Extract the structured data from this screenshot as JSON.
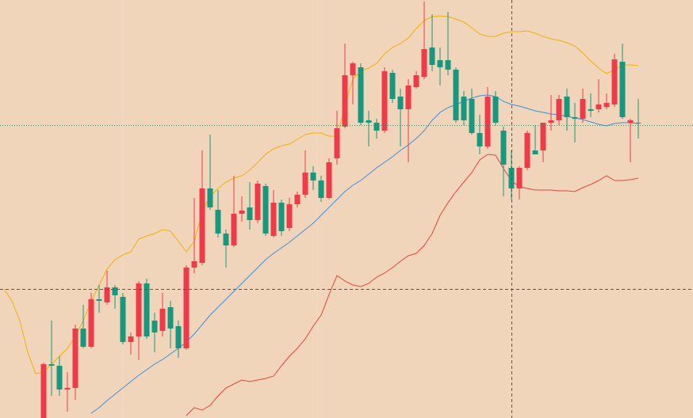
{
  "chart_data": {
    "type": "candlestick",
    "xlim": [
      -5.5,
      81.9
    ],
    "ylim": [
      0,
      528
    ],
    "x": [
      -5,
      -4,
      -3,
      -2,
      -1,
      0,
      1,
      2,
      3,
      4,
      5,
      6,
      7,
      8,
      9,
      10,
      11,
      12,
      13,
      14,
      15,
      16,
      17,
      18,
      19,
      20,
      21,
      22,
      23,
      24,
      25,
      26,
      27,
      28,
      29,
      30,
      31,
      32,
      33,
      34,
      35,
      36,
      37,
      38,
      39,
      40,
      41,
      42,
      43,
      44,
      45,
      46,
      47,
      48,
      49,
      50,
      51,
      52,
      53,
      54,
      55,
      56,
      57,
      58,
      59,
      60,
      61,
      62,
      63,
      64,
      65,
      66,
      67,
      68,
      69,
      70,
      71,
      72,
      73,
      74,
      75
    ],
    "series": [
      {
        "type": "candlestick",
        "color_up": "#ef3a4a",
        "color_down": "#17987e",
        "open": [
          null,
          null,
          null,
          null,
          null,
          0,
          68,
          66,
          36,
          38,
          113,
          90,
          150,
          146,
          165,
          153,
          96,
          103,
          170,
          123,
          110,
          140,
          116,
          88,
          190,
          196,
          290,
          263,
          233,
          218,
          258,
          266,
          250,
          293,
          230,
          272,
          240,
          270,
          282,
          310,
          300,
          278,
          328,
          368,
          433,
          443,
          376,
          373,
          363,
          436,
          406,
          390,
          418,
          431,
          468,
          452,
          452,
          440,
          406,
          403,
          360,
          343,
          406,
          363,
          316,
          290,
          316,
          338,
          338,
          373,
          376,
          406,
          380,
          378,
          390,
          390,
          393,
          396,
          450,
          373,
          373
        ],
        "close": [
          null,
          null,
          null,
          null,
          null,
          68,
          66,
          36,
          38,
          113,
          90,
          150,
          148,
          165,
          155,
          96,
          103,
          170,
          103,
          108,
          138,
          113,
          88,
          190,
          198,
          290,
          266,
          233,
          218,
          258,
          262,
          250,
          296,
          233,
          272,
          236,
          270,
          282,
          310,
          300,
          278,
          323,
          366,
          433,
          448,
          373,
          373,
          363,
          438,
          403,
          390,
          420,
          433,
          466,
          446,
          443,
          440,
          376,
          376,
          360,
          343,
          406,
          373,
          320,
          290,
          316,
          360,
          333,
          373,
          376,
          403,
          380,
          378,
          403,
          388,
          396,
          398,
          453,
          380,
          376,
          372
        ],
        "high": [
          null,
          null,
          null,
          null,
          null,
          70,
          123,
          78,
          58,
          118,
          143,
          158,
          168,
          186,
          168,
          158,
          108,
          173,
          176,
          133,
          158,
          148,
          123,
          193,
          278,
          338,
          358,
          288,
          238,
          306,
          280,
          298,
          300,
          296,
          288,
          276,
          278,
          286,
          338,
          318,
          306,
          328,
          388,
          473,
          450,
          448,
          388,
          378,
          443,
          440,
          416,
          428,
          438,
          526,
          510,
          468,
          513,
          443,
          413,
          416,
          383,
          418,
          413,
          368,
          338,
          318,
          363,
          370,
          373,
          408,
          408,
          416,
          398,
          416,
          410,
          428,
          410,
          460,
          473,
          378,
          403
        ],
        "low": [
          null,
          null,
          null,
          null,
          null,
          0,
          28,
          28,
          8,
          23,
          88,
          88,
          133,
          143,
          138,
          93,
          80,
          73,
          100,
          83,
          103,
          88,
          76,
          86,
          183,
          193,
          263,
          228,
          190,
          216,
          248,
          238,
          246,
          230,
          228,
          230,
          236,
          266,
          278,
          288,
          273,
          276,
          320,
          366,
          396,
          370,
          343,
          353,
          360,
          398,
          343,
          323,
          416,
          428,
          438,
          420,
          433,
          373,
          370,
          358,
          333,
          340,
          370,
          280,
          276,
          276,
          313,
          333,
          323,
          363,
          370,
          363,
          348,
          373,
          380,
          386,
          390,
          393,
          378,
          323,
          353
        ]
      },
      {
        "type": "line",
        "color": "#f2b200",
        "values": [
          163,
          148,
          123,
          83,
          56,
          58,
          68,
          78,
          88,
          103,
          123,
          148,
          168,
          188,
          200,
          206,
          210,
          226,
          230,
          233,
          238,
          236,
          223,
          210,
          223,
          260,
          280,
          290,
          298,
          303,
          306,
          313,
          323,
          333,
          340,
          344,
          346,
          352,
          358,
          360,
          360,
          356,
          356,
          393,
          428,
          438,
          442,
          448,
          460,
          468,
          473,
          480,
          492,
          502,
          507,
          508,
          507,
          504,
          500,
          493,
          485,
          482,
          482,
          486,
          488,
          488,
          489,
          486,
          482,
          479,
          477,
          474,
          470,
          461,
          451,
          442,
          435,
          440,
          446,
          446,
          445
        ]
      },
      {
        "type": "line",
        "color": "#3d8fe0",
        "values": [
          null,
          null,
          null,
          null,
          null,
          null,
          null,
          null,
          null,
          null,
          null,
          6,
          13,
          22,
          30,
          38,
          46,
          54,
          61,
          68,
          74,
          81,
          88,
          96,
          106,
          118,
          130,
          140,
          150,
          160,
          170,
          180,
          190,
          200,
          208,
          215,
          222,
          230,
          238,
          246,
          256,
          266,
          276,
          286,
          294,
          300,
          308,
          316,
          323,
          330,
          338,
          345,
          353,
          363,
          376,
          386,
          392,
          396,
          400,
          404,
          407,
          408,
          406,
          400,
          396,
          394,
          391,
          388,
          386,
          384,
          383,
          381,
          379,
          377,
          374,
          371,
          369,
          372,
          373,
          373,
          372
        ]
      },
      {
        "type": "line",
        "color": "#e8453c",
        "values": [
          null,
          null,
          null,
          null,
          null,
          null,
          null,
          null,
          null,
          null,
          null,
          null,
          null,
          null,
          null,
          null,
          null,
          null,
          null,
          null,
          null,
          null,
          null,
          3,
          13,
          10,
          16,
          28,
          38,
          43,
          48,
          46,
          48,
          50,
          53,
          66,
          78,
          88,
          100,
          116,
          130,
          156,
          180,
          173,
          168,
          166,
          170,
          178,
          183,
          190,
          198,
          205,
          208,
          218,
          233,
          256,
          272,
          286,
          298,
          310,
          326,
          333,
          332,
          315,
          300,
          292,
          290,
          288,
          288,
          288,
          287,
          287,
          286,
          291,
          295,
          300,
          306,
          300,
          300,
          301,
          303
        ]
      }
    ]
  }
}
